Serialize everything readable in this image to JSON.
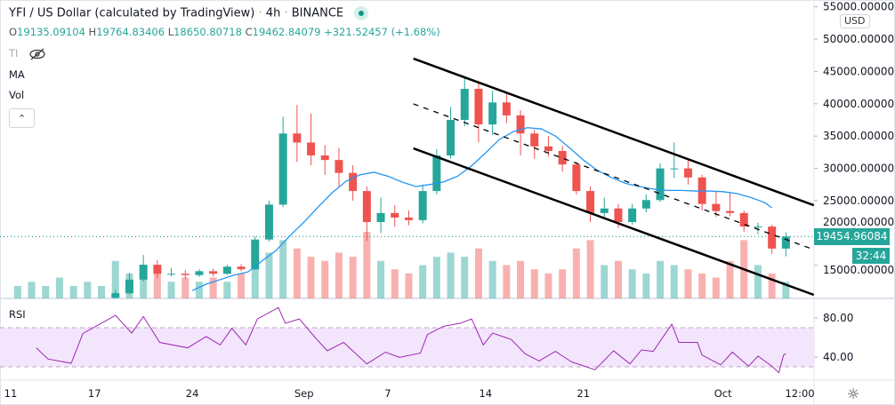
{
  "header": {
    "symbol": "YFI / US Dollar (calculated by TradingView)",
    "interval": "4h",
    "exchange": "BINANCE",
    "separator": "·",
    "ohlc": {
      "o_label": "O",
      "o": "19135.09104",
      "h_label": "H",
      "h": "19764.83406",
      "l_label": "L",
      "l": "18650.80718",
      "c_label": "C",
      "c": "19462.84079",
      "change": "+321.52457 (+1.68%)"
    },
    "indicators": [
      "TI",
      "MA",
      "Vol"
    ]
  },
  "price_axis": {
    "currency": "USD",
    "last_price": "19454.96084",
    "countdown": "32:44"
  },
  "rsi_title": "RSI",
  "colors": {
    "up": "#26a69a",
    "down": "#ef5350",
    "ma": "#2196f3",
    "rsi": "#9c27b0",
    "rsi_band": "#f3e5fc",
    "channel": "#000000",
    "accent": "#26a69a"
  },
  "icons": {
    "visibility": "eye-off-icon",
    "collapse": "chevron-up-icon",
    "settings": "gear-icon",
    "live": "live-dot-icon"
  },
  "chart_data": [
    {
      "type": "candlestick",
      "ylim": [
        9000,
        55000
      ],
      "y_ticks": [
        "15000.00000",
        "20000.00000",
        "25000.00000",
        "30000.00000",
        "35000.00000",
        "40000.00000",
        "45000.00000",
        "50000.00000",
        "55000.00000"
      ],
      "y_tick_values": [
        15000,
        20000,
        25000,
        30000,
        35000,
        40000,
        45000,
        50000,
        55000
      ],
      "x_ticks": [
        {
          "label": "11",
          "date": "2020-08-11 00:00"
        },
        {
          "label": "17",
          "date": "2020-08-17 00:00"
        },
        {
          "label": "24",
          "date": "2020-08-24 00:00"
        },
        {
          "label": "Sep",
          "date": "2020-09-01 00:00"
        },
        {
          "label": "7",
          "date": "2020-09-07 00:00"
        },
        {
          "label": "14",
          "date": "2020-09-14 00:00"
        },
        {
          "label": "21",
          "date": "2020-09-21 00:00"
        },
        {
          "label": "Oct",
          "date": "2020-10-01 00:00"
        },
        {
          "label": "12:00",
          "date": "2020-10-06 12:00"
        }
      ],
      "candles_daily_approx": [
        [
          "2020-08-18",
          10000,
          11200,
          9900,
          10700
        ],
        [
          "2020-08-19",
          10700,
          13800,
          10500,
          12800
        ],
        [
          "2020-08-20",
          12800,
          16600,
          12500,
          15100
        ],
        [
          "2020-08-21",
          15100,
          15800,
          13000,
          13700
        ],
        [
          "2020-08-22",
          13700,
          14600,
          13300,
          13700
        ],
        [
          "2020-08-23",
          13700,
          14300,
          12900,
          13500
        ],
        [
          "2020-08-24",
          13500,
          14400,
          13200,
          14100
        ],
        [
          "2020-08-25",
          14100,
          14500,
          13300,
          13700
        ],
        [
          "2020-08-26",
          13700,
          15100,
          13500,
          14800
        ],
        [
          "2020-08-27",
          14800,
          15200,
          14100,
          14400
        ],
        [
          "2020-08-28",
          14400,
          19500,
          14300,
          19000
        ],
        [
          "2020-08-29",
          19000,
          25000,
          18700,
          24400
        ],
        [
          "2020-08-30",
          24400,
          38000,
          24000,
          35400
        ],
        [
          "2020-08-31",
          35400,
          39800,
          31000,
          34000
        ],
        [
          "2020-09-01",
          34000,
          38500,
          30500,
          32000
        ],
        [
          "2020-09-02",
          32000,
          33600,
          29000,
          31300
        ],
        [
          "2020-09-03",
          31300,
          33200,
          27000,
          29300
        ],
        [
          "2020-09-04",
          29300,
          30500,
          25000,
          26500
        ],
        [
          "2020-09-05",
          26500,
          27200,
          18800,
          21700
        ],
        [
          "2020-09-06",
          21700,
          25500,
          20000,
          23100
        ],
        [
          "2020-09-07",
          23100,
          24300,
          21000,
          22400
        ],
        [
          "2020-09-08",
          22400,
          23500,
          21200,
          22000
        ],
        [
          "2020-09-09",
          22000,
          27500,
          21500,
          26500
        ],
        [
          "2020-09-10",
          26500,
          33000,
          26000,
          32000
        ],
        [
          "2020-09-11",
          32000,
          39500,
          31500,
          37500
        ],
        [
          "2020-09-12",
          37500,
          44000,
          36500,
          42300
        ],
        [
          "2020-09-13",
          42300,
          43500,
          34000,
          36800
        ],
        [
          "2020-09-14",
          36800,
          42000,
          35200,
          40200
        ],
        [
          "2020-09-15",
          40200,
          41800,
          37000,
          38200
        ],
        [
          "2020-09-16",
          38200,
          39000,
          32000,
          35400
        ],
        [
          "2020-09-17",
          35400,
          36000,
          31500,
          33400
        ],
        [
          "2020-09-18",
          33400,
          35000,
          31800,
          32700
        ],
        [
          "2020-09-19",
          32700,
          33500,
          29500,
          30600
        ],
        [
          "2020-09-20",
          30600,
          31000,
          26000,
          26500
        ],
        [
          "2020-09-21",
          26500,
          27200,
          21700,
          23100
        ],
        [
          "2020-09-22",
          23100,
          25500,
          22500,
          23800
        ],
        [
          "2020-09-23",
          23800,
          24500,
          20800,
          21700
        ],
        [
          "2020-09-24",
          21700,
          24500,
          21300,
          23800
        ],
        [
          "2020-09-25",
          23800,
          26000,
          23200,
          25100
        ],
        [
          "2020-09-26",
          25100,
          30800,
          24800,
          30000
        ],
        [
          "2020-09-27",
          30000,
          34000,
          28500,
          30000
        ],
        [
          "2020-09-28",
          30000,
          31300,
          27500,
          28600
        ],
        [
          "2020-09-29",
          28600,
          29000,
          23500,
          24500
        ],
        [
          "2020-09-30",
          24500,
          26500,
          22500,
          23400
        ],
        [
          "2020-10-01",
          23400,
          26200,
          22600,
          23100
        ],
        [
          "2020-10-02",
          23100,
          23500,
          20200,
          21000
        ],
        [
          "2020-10-03",
          21000,
          21600,
          19800,
          21000
        ],
        [
          "2020-10-04",
          21000,
          21300,
          16800,
          17600
        ],
        [
          "2020-10-05",
          17600,
          20100,
          16400,
          19462.84
        ]
      ],
      "volume_relative": [
        [
          "2020-08-11",
          3
        ],
        [
          "2020-08-12",
          4
        ],
        [
          "2020-08-13",
          3
        ],
        [
          "2020-08-14",
          5
        ],
        [
          "2020-08-15",
          3
        ],
        [
          "2020-08-16",
          4
        ],
        [
          "2020-08-17",
          3
        ],
        [
          "2020-08-18",
          9
        ],
        [
          "2020-08-19",
          6
        ],
        [
          "2020-08-20",
          8
        ],
        [
          "2020-08-21",
          6
        ],
        [
          "2020-08-22",
          4
        ],
        [
          "2020-08-23",
          5
        ],
        [
          "2020-08-24",
          4
        ],
        [
          "2020-08-25",
          5
        ],
        [
          "2020-08-26",
          4
        ],
        [
          "2020-08-27",
          6
        ],
        [
          "2020-08-28",
          8
        ],
        [
          "2020-08-29",
          11
        ],
        [
          "2020-08-30",
          14
        ],
        [
          "2020-08-31",
          12
        ],
        [
          "2020-09-01",
          10
        ],
        [
          "2020-09-02",
          9
        ],
        [
          "2020-09-03",
          11
        ],
        [
          "2020-09-04",
          10
        ],
        [
          "2020-09-05",
          16
        ],
        [
          "2020-09-06",
          9
        ],
        [
          "2020-09-07",
          7
        ],
        [
          "2020-09-08",
          6
        ],
        [
          "2020-09-09",
          8
        ],
        [
          "2020-09-10",
          10
        ],
        [
          "2020-09-11",
          11
        ],
        [
          "2020-09-12",
          10
        ],
        [
          "2020-09-13",
          12
        ],
        [
          "2020-09-14",
          9
        ],
        [
          "2020-09-15",
          8
        ],
        [
          "2020-09-16",
          9
        ],
        [
          "2020-09-17",
          7
        ],
        [
          "2020-09-18",
          6
        ],
        [
          "2020-09-19",
          7
        ],
        [
          "2020-09-20",
          12
        ],
        [
          "2020-09-21",
          14
        ],
        [
          "2020-09-22",
          8
        ],
        [
          "2020-09-23",
          9
        ],
        [
          "2020-09-24",
          7
        ],
        [
          "2020-09-25",
          6
        ],
        [
          "2020-09-26",
          9
        ],
        [
          "2020-09-27",
          8
        ],
        [
          "2020-09-28",
          7
        ],
        [
          "2020-09-29",
          6
        ],
        [
          "2020-09-30",
          5
        ],
        [
          "2020-10-01",
          9
        ],
        [
          "2020-10-02",
          14
        ],
        [
          "2020-10-03",
          8
        ],
        [
          "2020-10-04",
          6
        ],
        [
          "2020-10-05",
          4
        ]
      ],
      "ma_series": [
        [
          "2020-08-24 00:00",
          11100
        ],
        [
          "2020-08-25 00:00",
          12100
        ],
        [
          "2020-08-26 00:00",
          12800
        ],
        [
          "2020-08-27 00:00",
          13500
        ],
        [
          "2020-08-28 00:00",
          14000
        ],
        [
          "2020-08-29 00:00",
          15700
        ],
        [
          "2020-08-30 00:00",
          17300
        ],
        [
          "2020-08-31 00:00",
          19600
        ],
        [
          "2020-09-01 00:00",
          21700
        ],
        [
          "2020-09-02 00:00",
          24000
        ],
        [
          "2020-09-03 00:00",
          26200
        ],
        [
          "2020-09-04 00:00",
          28000
        ],
        [
          "2020-09-05 00:00",
          29000
        ],
        [
          "2020-09-06 00:00",
          29400
        ],
        [
          "2020-09-07 00:00",
          28800
        ],
        [
          "2020-09-08 00:00",
          27900
        ],
        [
          "2020-09-09 00:00",
          27200
        ],
        [
          "2020-09-10 00:00",
          27500
        ],
        [
          "2020-09-11 00:00",
          27900
        ],
        [
          "2020-09-12 00:00",
          28800
        ],
        [
          "2020-09-13 00:00",
          30400
        ],
        [
          "2020-09-14 00:00",
          32400
        ],
        [
          "2020-09-15 00:00",
          34500
        ],
        [
          "2020-09-16 00:00",
          35700
        ],
        [
          "2020-09-17 00:00",
          36300
        ],
        [
          "2020-09-18 00:00",
          36100
        ],
        [
          "2020-09-19 00:00",
          35000
        ],
        [
          "2020-09-20 00:00",
          33200
        ],
        [
          "2020-09-21 00:00",
          31300
        ],
        [
          "2020-09-22 00:00",
          29700
        ],
        [
          "2020-09-23 00:00",
          28600
        ],
        [
          "2020-09-24 00:00",
          27700
        ],
        [
          "2020-09-25 00:00",
          27200
        ],
        [
          "2020-09-26 00:00",
          26800
        ],
        [
          "2020-09-27 00:00",
          26600
        ],
        [
          "2020-09-28 00:00",
          26600
        ],
        [
          "2020-09-29 00:00",
          26500
        ],
        [
          "2020-09-30 00:00",
          26500
        ],
        [
          "2020-10-01 00:00",
          26400
        ],
        [
          "2020-10-02 00:00",
          26100
        ],
        [
          "2020-10-03 00:00",
          25500
        ],
        [
          "2020-10-04 00:00",
          24700
        ],
        [
          "2020-10-04 12:00",
          23900
        ]
      ],
      "channel": {
        "upper": [
          [
            "2020-09-08 20:00",
            46980
          ],
          [
            "2020-10-07 12:00",
            24300
          ]
        ],
        "middle": [
          [
            "2020-09-08 20:00",
            39970
          ],
          [
            "2020-10-07 12:00",
            17440
          ]
        ],
        "lower": [
          [
            "2020-09-08 20:00",
            33100
          ],
          [
            "2020-10-07 12:00",
            10440
          ]
        ]
      },
      "last_price": 19454.96084
    },
    {
      "type": "line",
      "title": "RSI",
      "ylim": [
        20,
        100
      ],
      "y_ticks": [
        "40.00",
        "80.00"
      ],
      "y_tick_values": [
        40,
        80
      ],
      "band": [
        30,
        70
      ],
      "values": [
        [
          "2020-08-12 20:00",
          49.4
        ],
        [
          "2020-08-13 16:00",
          38
        ],
        [
          "2020-08-15 08:00",
          33.6
        ],
        [
          "2020-08-16 04:00",
          64
        ],
        [
          "2020-08-18 12:00",
          82.7
        ],
        [
          "2020-08-19 16:00",
          64.5
        ],
        [
          "2020-08-20 12:00",
          81.5
        ],
        [
          "2020-08-21 16:00",
          55
        ],
        [
          "2020-08-23 16:00",
          49.4
        ],
        [
          "2020-08-25 00:00",
          61
        ],
        [
          "2020-08-26 00:00",
          52.4
        ],
        [
          "2020-08-26 20:00",
          69.4
        ],
        [
          "2020-08-27 20:00",
          52.4
        ],
        [
          "2020-08-28 16:00",
          79
        ],
        [
          "2020-08-30 04:00",
          90.6
        ],
        [
          "2020-08-30 16:00",
          74.5
        ],
        [
          "2020-08-31 16:00",
          79
        ],
        [
          "2020-09-01 20:00",
          59.4
        ],
        [
          "2020-09-02 16:00",
          46.4
        ],
        [
          "2020-09-03 20:00",
          55
        ],
        [
          "2020-09-05 12:00",
          33
        ],
        [
          "2020-09-06 20:00",
          45
        ],
        [
          "2020-09-07 20:00",
          39.7
        ],
        [
          "2020-09-09 08:00",
          44
        ],
        [
          "2020-09-09 20:00",
          63
        ],
        [
          "2020-09-11 00:00",
          71.5
        ],
        [
          "2020-09-12 04:00",
          74.5
        ],
        [
          "2020-09-13 00:00",
          79
        ],
        [
          "2020-09-13 20:00",
          52.4
        ],
        [
          "2020-09-14 12:00",
          64.5
        ],
        [
          "2020-09-15 20:00",
          58
        ],
        [
          "2020-09-16 20:00",
          43.3
        ],
        [
          "2020-09-17 20:00",
          36
        ],
        [
          "2020-09-19 00:00",
          45.8
        ],
        [
          "2020-09-20 04:00",
          35
        ],
        [
          "2020-09-21 20:00",
          27
        ],
        [
          "2020-09-23 04:00",
          46.4
        ],
        [
          "2020-09-24 08:00",
          33
        ],
        [
          "2020-09-25 04:00",
          47.3
        ],
        [
          "2020-09-26 00:00",
          45.8
        ],
        [
          "2020-09-27 08:00",
          73.6
        ],
        [
          "2020-09-27 20:00",
          55
        ],
        [
          "2020-09-29 04:00",
          55
        ],
        [
          "2020-09-29 12:00",
          42
        ],
        [
          "2020-09-30 20:00",
          32
        ],
        [
          "2020-10-01 16:00",
          45
        ],
        [
          "2020-10-02 20:00",
          30.6
        ],
        [
          "2020-10-03 12:00",
          41
        ],
        [
          "2020-10-04 12:00",
          30.6
        ],
        [
          "2020-10-05 00:00",
          24
        ],
        [
          "2020-10-05 08:00",
          42
        ],
        [
          "2020-10-05 12:00",
          43.6
        ]
      ]
    }
  ]
}
